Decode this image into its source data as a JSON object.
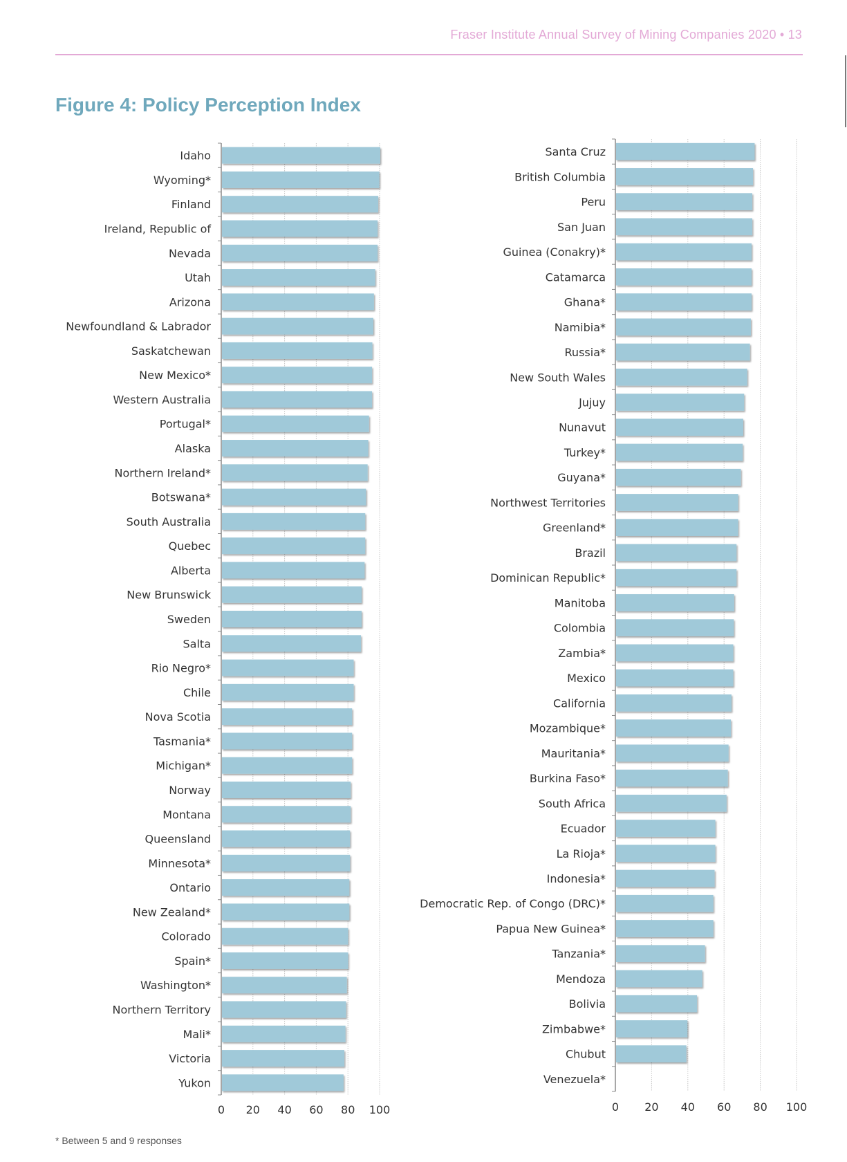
{
  "header": {
    "running_head": "Fraser Institute Annual Survey of Mining Companies 2020  •  13"
  },
  "figure": {
    "title": "Figure 4: Policy Perception Index",
    "footnote": "* Between 5 and 9 responses"
  },
  "colors": {
    "bar": "#a0c9d9",
    "title": "#6fa8bc",
    "accent_pink": "#e3a9d6",
    "grid": "#c8c8c8"
  },
  "chart_data": [
    {
      "type": "bar",
      "orientation": "horizontal",
      "title": "Figure 4: Policy Perception Index (panel 1)",
      "xlabel": "",
      "ylabel": "",
      "xlim": [
        0,
        100
      ],
      "xticks": [
        "0",
        "20",
        "40",
        "60",
        "80",
        "100"
      ],
      "grid": true,
      "categories": [
        "Idaho",
        "Wyoming*",
        "Finland",
        "Ireland, Republic of",
        "Nevada",
        "Utah",
        "Arizona",
        "Newfoundland & Labrador",
        "Saskatchewan",
        "New Mexico*",
        "Western Australia",
        "Portugal*",
        "Alaska",
        "Northern Ireland*",
        "Botswana*",
        "South Australia",
        "Quebec",
        "Alberta",
        "New Brunswick",
        "Sweden",
        "Salta",
        "Rio Negro*",
        "Chile",
        "Nova Scotia",
        "Tasmania*",
        "Michigan*",
        "Norway",
        "Montana",
        "Queensland",
        "Minnesota*",
        "Ontario",
        "New Zealand*",
        "Colorado",
        "Spain*",
        "Washington*",
        "Northern Territory",
        "Mali*",
        "Victoria",
        "Yukon"
      ],
      "values": [
        100.0,
        99.4,
        98.7,
        98.3,
        98.3,
        96.8,
        96.0,
        95.6,
        95.0,
        94.8,
        94.8,
        92.9,
        92.4,
        92.0,
        91.0,
        90.5,
        90.5,
        90.1,
        88.2,
        88.2,
        87.8,
        83.2,
        83.2,
        82.2,
        82.2,
        82.2,
        81.3,
        81.3,
        80.9,
        80.9,
        80.5,
        80.5,
        79.7,
        79.7,
        78.9,
        78.4,
        78.0,
        77.3,
        76.8
      ]
    },
    {
      "type": "bar",
      "orientation": "horizontal",
      "title": "Figure 4: Policy Perception Index (panel 2)",
      "xlabel": "",
      "ylabel": "",
      "xlim": [
        0,
        100
      ],
      "xticks": [
        "0",
        "20",
        "40",
        "60",
        "80",
        "100"
      ],
      "grid": true,
      "categories": [
        "Santa Cruz",
        "British Columbia",
        "Peru",
        "San Juan",
        "Guinea (Conakry)*",
        "Catamarca",
        "Ghana*",
        "Namibia*",
        "Russia*",
        "New South Wales",
        "Jujuy",
        "Nunavut",
        "Turkey*",
        "Guyana*",
        "Northwest Territories",
        "Greenland*",
        "Brazil",
        "Dominican Republic*",
        "Manitoba",
        "Colombia",
        "Zambia*",
        "Mexico",
        "California",
        "Mozambique*",
        "Mauritania*",
        "Burkina Faso*",
        "South Africa",
        "Ecuador",
        "La Rioja*",
        "Indonesia*",
        "Democratic Rep. of Congo (DRC)*",
        "Papua New Guinea*",
        "Tanzania*",
        "Mendoza",
        "Bolivia",
        "Zimbabwe*",
        "Chubut",
        "Venezuela*"
      ],
      "values": [
        76.5,
        75.6,
        75.2,
        75.2,
        74.8,
        74.8,
        74.8,
        74.4,
        73.9,
        72.4,
        70.7,
        70.2,
        69.9,
        68.9,
        67.4,
        67.4,
        66.5,
        66.5,
        65.2,
        65.0,
        64.7,
        64.7,
        63.7,
        63.4,
        62.1,
        61.7,
        61.0,
        54.8,
        54.8,
        54.4,
        53.7,
        53.7,
        49.1,
        47.6,
        44.7,
        39.4,
        38.8,
        0
      ]
    }
  ]
}
